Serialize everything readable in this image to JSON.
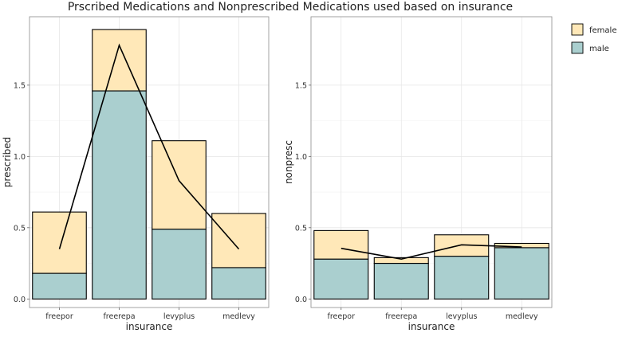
{
  "chart_data": [
    {
      "type": "bar",
      "stacked": true,
      "title": "Prscribed Medications and Nonprescribed Medications used based on insurance",
      "xlabel": "insurance",
      "ylabel": "prescribed",
      "categories": [
        "freepor",
        "freerepa",
        "levyplus",
        "medlevy"
      ],
      "series": [
        {
          "name": "male",
          "values": [
            0.18,
            1.46,
            0.49,
            0.22
          ],
          "color": "#aacfcf"
        },
        {
          "name": "female",
          "values": [
            0.43,
            0.43,
            0.62,
            0.38
          ],
          "color": "#ffe8b8"
        }
      ],
      "line": {
        "values": [
          0.35,
          1.78,
          0.83,
          0.35
        ],
        "color": "#000000"
      },
      "yticks": [
        0.0,
        0.5,
        1.0,
        1.5
      ],
      "ytick_labels": [
        "0.0",
        "0.5",
        "1.0",
        "1.5"
      ],
      "ylim": [
        -0.06,
        1.98
      ],
      "grid": true
    },
    {
      "type": "bar",
      "stacked": true,
      "title": "",
      "xlabel": "insurance",
      "ylabel": "nonpresc",
      "categories": [
        "freepor",
        "freerepa",
        "levyplus",
        "medlevy"
      ],
      "series": [
        {
          "name": "male",
          "values": [
            0.28,
            0.25,
            0.3,
            0.36
          ],
          "color": "#aacfcf"
        },
        {
          "name": "female",
          "values": [
            0.2,
            0.04,
            0.15,
            0.03
          ],
          "color": "#ffe8b8"
        }
      ],
      "line": {
        "values": [
          0.355,
          0.28,
          0.38,
          0.365
        ],
        "color": "#000000"
      },
      "yticks": [
        0.0,
        0.5,
        1.0,
        1.5
      ],
      "ytick_labels": [
        "0.0",
        "0.5",
        "1.0",
        "1.5"
      ],
      "ylim": [
        -0.06,
        1.98
      ],
      "grid": true
    }
  ],
  "legend": {
    "placement": "top-right",
    "items": [
      {
        "label": "female",
        "color": "#ffe8b8"
      },
      {
        "label": "male",
        "color": "#aacfcf"
      }
    ]
  }
}
